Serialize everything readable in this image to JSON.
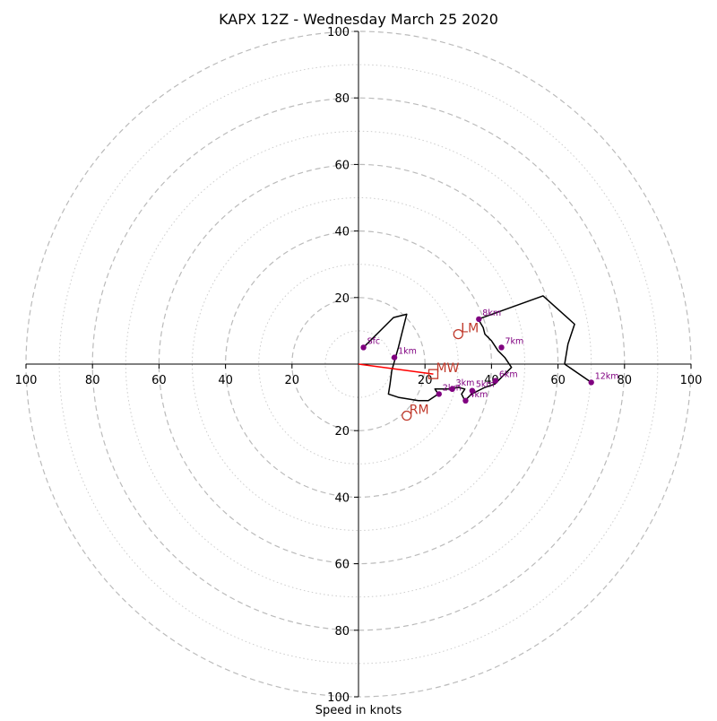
{
  "chart_data": {
    "type": "hodograph",
    "title": "KAPX 12Z - Wednesday March 25 2020",
    "xlabel": "Speed in knots",
    "ylabel": "",
    "xlim": [
      -100,
      100
    ],
    "ylim": [
      -100,
      100
    ],
    "ring_major": [
      20,
      40,
      60,
      80,
      100
    ],
    "ring_minor": [
      10,
      30,
      50,
      70,
      90
    ],
    "tick_labels": {
      "x_negative": [
        "100",
        "80",
        "60",
        "40",
        "20"
      ],
      "x_positive": [
        "20",
        "40",
        "60",
        "80",
        "100"
      ],
      "y_positive": [
        "20",
        "40",
        "60",
        "80",
        "100"
      ],
      "y_negative": [
        "20",
        "40",
        "60",
        "80",
        "100"
      ]
    },
    "hodograph_trace": [
      [
        1.5,
        5
      ],
      [
        10.5,
        14
      ],
      [
        14.5,
        15
      ],
      [
        13,
        9
      ],
      [
        12,
        5
      ],
      [
        11,
        1.5
      ],
      [
        10,
        -2
      ],
      [
        9.5,
        -6
      ],
      [
        9,
        -9
      ],
      [
        12,
        -10
      ],
      [
        18,
        -11
      ],
      [
        21,
        -11
      ],
      [
        24,
        -9
      ],
      [
        23,
        -7.5
      ],
      [
        27,
        -7.5
      ],
      [
        30,
        -7
      ],
      [
        32,
        -7.5
      ],
      [
        31,
        -9
      ],
      [
        32,
        -11
      ],
      [
        34,
        -9
      ],
      [
        38,
        -7
      ],
      [
        41,
        -6
      ],
      [
        43,
        -4
      ],
      [
        46,
        -1
      ],
      [
        44,
        2
      ],
      [
        42,
        4
      ],
      [
        40,
        7
      ],
      [
        38,
        9
      ],
      [
        37.5,
        11
      ],
      [
        36,
        13.5
      ],
      [
        55.5,
        20.5
      ],
      [
        65,
        12
      ],
      [
        63,
        6
      ],
      [
        62,
        0
      ],
      [
        70,
        -5.5
      ]
    ],
    "height_points": [
      {
        "label": "Sfc",
        "x": 1.5,
        "y": 5
      },
      {
        "label": "1km",
        "x": 10.8,
        "y": 2
      },
      {
        "label": "2km",
        "x": 24.2,
        "y": -9
      },
      {
        "label": "3km",
        "x": 28.2,
        "y": -7.5
      },
      {
        "label": "4km",
        "x": 32.2,
        "y": -11
      },
      {
        "label": "5km",
        "x": 34.2,
        "y": -8
      },
      {
        "label": "6km",
        "x": 41.2,
        "y": -5
      },
      {
        "label": "7km",
        "x": 43,
        "y": 5
      },
      {
        "label": "8km",
        "x": 36.2,
        "y": 13.5
      },
      {
        "label": "12km",
        "x": 70,
        "y": -5.5
      }
    ],
    "markers": [
      {
        "label": "LM",
        "x": 30,
        "y": 9,
        "shape": "circle"
      },
      {
        "label": "MW",
        "x": 22.5,
        "y": -3,
        "shape": "square"
      },
      {
        "label": "RM",
        "x": 14.5,
        "y": -15.5,
        "shape": "circle"
      }
    ],
    "mean_wind_vector": {
      "from": [
        0,
        0
      ],
      "to": [
        22.5,
        -3
      ]
    },
    "grid": true,
    "colors": {
      "trace": "#000000",
      "points": "#800080",
      "markers": "#c0392b",
      "vector": "#ff0000",
      "rings": "#bbbbbb"
    }
  }
}
